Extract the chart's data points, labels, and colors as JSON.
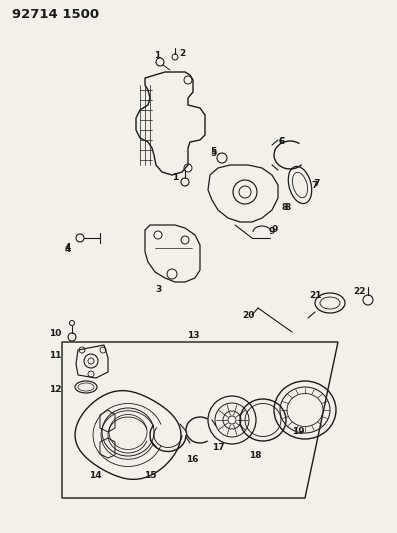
{
  "bg_color": "#f2f0e8",
  "line_color": "#1a1a1a",
  "header": "92714 1500",
  "figsize": [
    3.97,
    5.33
  ],
  "dpi": 100
}
